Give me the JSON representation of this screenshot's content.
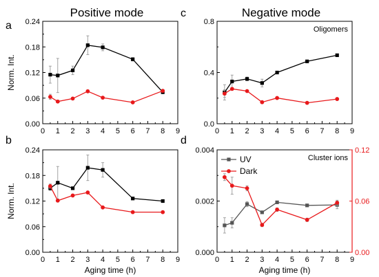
{
  "titles": {
    "left": "Positive mode",
    "right": "Negative mode"
  },
  "colors": {
    "uv": "#000000",
    "uv_d": "#555555",
    "dark": "#e8191b",
    "errorbar": "#999999"
  },
  "chart_data": [
    {
      "id": "a",
      "type": "line",
      "panel_label": "a",
      "xlabel": "",
      "ylabel": "Norm. Int.",
      "xlim": [
        0,
        9
      ],
      "ylim": [
        0,
        0.24
      ],
      "xticks": [
        "0",
        "1",
        "2",
        "3",
        "4",
        "5",
        "6",
        "7",
        "8",
        "9"
      ],
      "yticks": [
        "0.00",
        "0.06",
        "0.12",
        "0.18",
        "0.24"
      ],
      "annotation": "",
      "series": [
        {
          "key": "uv",
          "x": [
            0.5,
            1,
            2,
            3,
            4,
            6,
            8
          ],
          "y": [
            0.115,
            0.113,
            0.125,
            0.184,
            0.179,
            0.151,
            0.074
          ],
          "err": [
            0.02,
            0.04,
            0.01,
            0.022,
            0.008,
            0.004,
            0.004
          ],
          "marker": "square"
        },
        {
          "key": "dark",
          "x": [
            0.5,
            1,
            2,
            3,
            4,
            6,
            8
          ],
          "y": [
            0.063,
            0.052,
            0.059,
            0.076,
            0.061,
            0.05,
            0.077
          ],
          "err": [
            0.006,
            0.003,
            0.003,
            0.003,
            0.002,
            0.002,
            0.003
          ],
          "marker": "circle"
        }
      ]
    },
    {
      "id": "b",
      "type": "line",
      "panel_label": "b",
      "xlabel": "Aging time (h)",
      "ylabel": "Norm. Int.",
      "xlim": [
        0,
        9
      ],
      "ylim": [
        0,
        0.24
      ],
      "xticks": [
        "0",
        "1",
        "2",
        "3",
        "4",
        "5",
        "6",
        "7",
        "8",
        "9"
      ],
      "yticks": [
        "0.00",
        "0.06",
        "0.12",
        "0.18",
        "0.24"
      ],
      "annotation": "",
      "series": [
        {
          "key": "uv",
          "x": [
            0.5,
            1,
            2,
            3,
            4,
            6,
            8
          ],
          "y": [
            0.15,
            0.163,
            0.15,
            0.198,
            0.193,
            0.126,
            0.12
          ],
          "err": [
            0.005,
            0.038,
            0.003,
            0.03,
            0.017,
            0.003,
            0.003
          ],
          "marker": "square"
        },
        {
          "key": "dark",
          "x": [
            0.5,
            1,
            2,
            3,
            4,
            6,
            8
          ],
          "y": [
            0.155,
            0.121,
            0.133,
            0.14,
            0.105,
            0.094,
            0.094
          ],
          "err": [
            0.005,
            0.003,
            0.003,
            0.003,
            0.002,
            0.002,
            0.002
          ],
          "marker": "circle"
        }
      ]
    },
    {
      "id": "c",
      "type": "line",
      "panel_label": "c",
      "xlabel": "",
      "ylabel": "",
      "xlim": [
        0,
        9
      ],
      "ylim": [
        0,
        0.8
      ],
      "xticks": [
        "0",
        "1",
        "2",
        "3",
        "4",
        "5",
        "6",
        "7",
        "8",
        "9"
      ],
      "yticks": [
        "0.0",
        "0.4",
        "0.8"
      ],
      "annotation": "Oligomers",
      "series": [
        {
          "key": "uv",
          "x": [
            0.5,
            1,
            2,
            3,
            4,
            6,
            8
          ],
          "y": [
            0.245,
            0.33,
            0.35,
            0.318,
            0.4,
            0.487,
            0.535
          ],
          "err": [
            0.06,
            0.05,
            0.015,
            0.03,
            0.01,
            0.006,
            0.006
          ],
          "marker": "square"
        },
        {
          "key": "dark",
          "x": [
            0.5,
            1,
            2,
            3,
            4,
            6,
            8
          ],
          "y": [
            0.235,
            0.272,
            0.255,
            0.168,
            0.201,
            0.163,
            0.193
          ],
          "err": [
            0.03,
            0.01,
            0.008,
            0.008,
            0.008,
            0.006,
            0.006
          ],
          "marker": "circle"
        }
      ]
    },
    {
      "id": "d",
      "type": "line",
      "panel_label": "d",
      "xlabel": "Aging time (h)",
      "ylabel": "",
      "xlim": [
        0,
        9
      ],
      "ylim": [
        0,
        0.004
      ],
      "ylim_right": [
        0,
        0.12
      ],
      "xticks": [
        "0",
        "1",
        "2",
        "3",
        "4",
        "5",
        "6",
        "7",
        "8",
        "9"
      ],
      "yticks": [
        "0.000",
        "0.002",
        "0.004"
      ],
      "yticks_right": [
        "0.00",
        "0.06",
        "0.12"
      ],
      "annotation": "Cluster ions",
      "legend": [
        {
          "key": "uv_d",
          "label": "UV",
          "marker": "square"
        },
        {
          "key": "dark",
          "label": "Dark",
          "marker": "circle"
        }
      ],
      "legend_position": "top-left",
      "series": [
        {
          "key": "uv_d",
          "axis": "left",
          "x": [
            0.5,
            1,
            2,
            3,
            4,
            6,
            8
          ],
          "y": [
            0.00105,
            0.00115,
            0.00188,
            0.00156,
            0.00195,
            0.00183,
            0.00185
          ],
          "err": [
            0.0003,
            0.0002,
            0.0001,
            5e-05,
            4e-05,
            3e-05,
            0.00015
          ],
          "marker": "square"
        },
        {
          "key": "dark",
          "axis": "right",
          "x": [
            0.5,
            1,
            2,
            3,
            4,
            6,
            8
          ],
          "y": [
            0.088,
            0.078,
            0.075,
            0.032,
            0.05,
            0.038,
            0.058
          ],
          "err": [
            0.004,
            0.01,
            0.003,
            0.002,
            0.002,
            0.002,
            0.003
          ],
          "marker": "circle"
        }
      ]
    }
  ]
}
